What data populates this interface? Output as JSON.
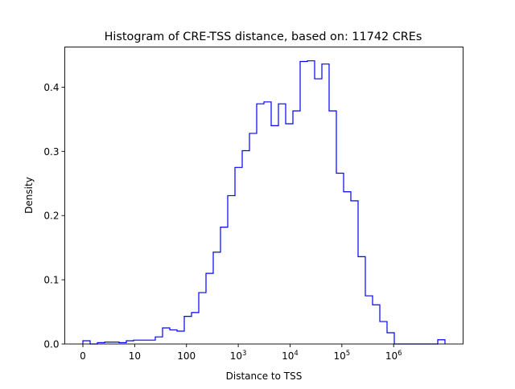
{
  "chart_data": {
    "type": "histogram",
    "title": "Histogram of CRE-TSS distance, based on: 11742 CREs",
    "xlabel": "Distance to TSS",
    "ylabel": "Density",
    "x_scale": "log10(distance+1)",
    "x_range": [
      0,
      9800000
    ],
    "bins": 50,
    "histtype": "step",
    "line_color": "#0000ff",
    "values": [
      0.005,
      0,
      0.002,
      0.003,
      0.003,
      0.002,
      0.005,
      0.006,
      0.006,
      0.006,
      0.011,
      0.025,
      0.022,
      0.02,
      0.043,
      0.049,
      0.08,
      0.11,
      0.143,
      0.182,
      0.231,
      0.275,
      0.301,
      0.328,
      0.374,
      0.377,
      0.34,
      0.374,
      0.343,
      0.363,
      0.44,
      0.441,
      0.413,
      0.436,
      0.363,
      0.266,
      0.237,
      0.223,
      0.136,
      0.075,
      0.061,
      0.035,
      0.0175,
      0,
      0,
      0,
      0,
      0,
      0,
      0.0066
    ],
    "ylim": [
      0,
      0.4625
    ],
    "x_ticks": [
      {
        "value": 0,
        "base": "0",
        "exp": ""
      },
      {
        "value": 10,
        "base": "10",
        "exp": ""
      },
      {
        "value": 100,
        "base": "100",
        "exp": ""
      },
      {
        "value": 1000,
        "base": "10",
        "exp": "3"
      },
      {
        "value": 10000,
        "base": "10",
        "exp": "4"
      },
      {
        "value": 100000,
        "base": "10",
        "exp": "5"
      },
      {
        "value": 1000000,
        "base": "10",
        "exp": "6"
      }
    ],
    "y_ticks": [
      {
        "value": 0.0,
        "label": "0.0"
      },
      {
        "value": 0.1,
        "label": "0.1"
      },
      {
        "value": 0.2,
        "label": "0.2"
      },
      {
        "value": 0.3,
        "label": "0.3"
      },
      {
        "value": 0.4,
        "label": "0.4"
      }
    ],
    "grid": false,
    "legend": "none"
  }
}
